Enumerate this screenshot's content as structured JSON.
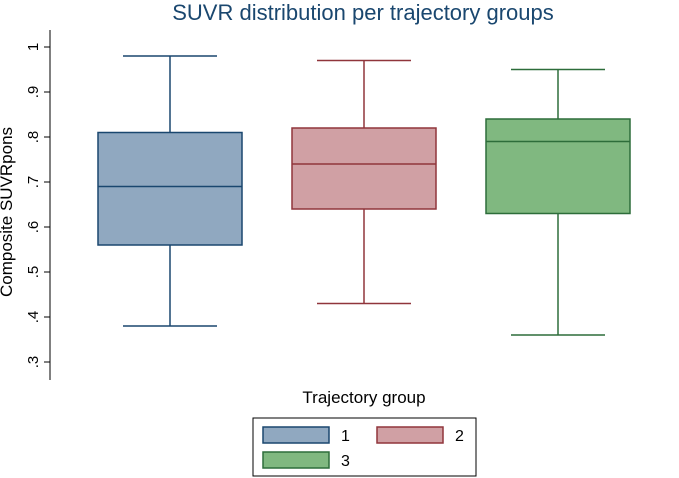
{
  "chart_data": {
    "type": "box",
    "title": "SUVR distribution per trajectory groups",
    "xlabel": "Trajectory group",
    "ylabel": "Composite SUVRpons",
    "ylim": [
      0.3,
      1.0
    ],
    "yticks": [
      0.3,
      0.4,
      0.5,
      0.6,
      0.7,
      0.8,
      0.9,
      1.0
    ],
    "ytick_labels": [
      ".3",
      ".4",
      ".5",
      ".6",
      ".7",
      ".8",
      ".9",
      "1"
    ],
    "grid": false,
    "legend_position": "bottom",
    "series": [
      {
        "name": "1",
        "min": 0.38,
        "q1": 0.56,
        "median": 0.69,
        "q3": 0.81,
        "max": 0.98,
        "fill": "#90a8c0",
        "stroke": "#1a476f"
      },
      {
        "name": "2",
        "min": 0.43,
        "q1": 0.64,
        "median": 0.74,
        "q3": 0.82,
        "max": 0.97,
        "fill": "#d0a0a4",
        "stroke": "#90353b"
      },
      {
        "name": "3",
        "min": 0.36,
        "q1": 0.63,
        "median": 0.79,
        "q3": 0.84,
        "max": 0.95,
        "fill": "#80b880",
        "stroke": "#2d6d3a"
      }
    ]
  }
}
